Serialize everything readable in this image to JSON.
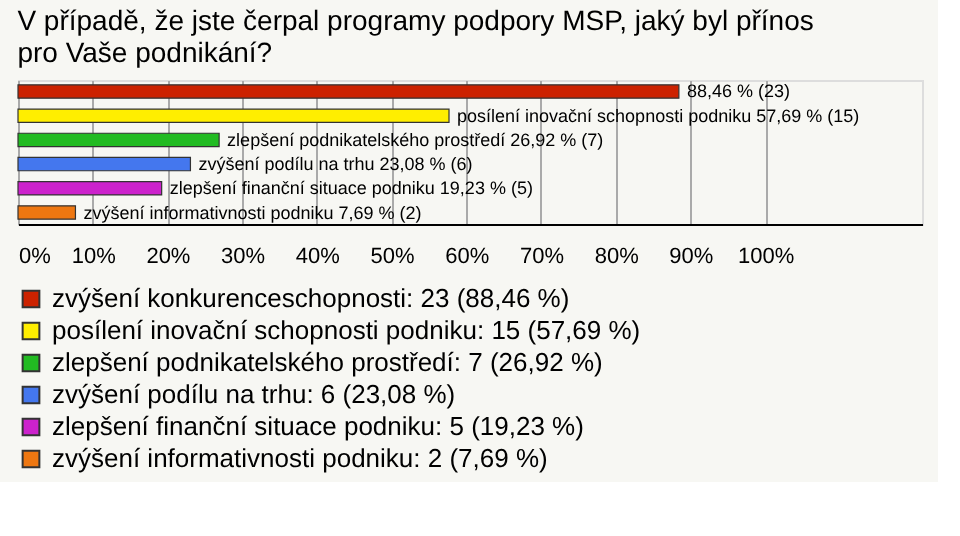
{
  "chart_data": {
    "type": "bar",
    "orientation": "horizontal",
    "stacked": true,
    "title": "V případě, že jste čerpal programy podpory MSP, jaký byl přínos pro Vaše podnikání?",
    "categories": [
      null,
      null,
      null,
      null,
      null,
      null
    ],
    "series": [
      {
        "name": "zvýšení konkurenceschopnosti: 23 (88,46 %)",
        "color": "#cc2200",
        "values": [
          88.46,
          null,
          null,
          null,
          null,
          null
        ],
        "value_labels": [
          "88,46 % (23)",
          null,
          null,
          null,
          null,
          null
        ]
      },
      {
        "name": "posílení inovační schopnosti podniku: 15 (57,69 %)",
        "color": "#ffee00",
        "values": [
          null,
          57.69,
          null,
          null,
          null,
          null
        ],
        "value_labels": [
          null,
          "posílení inovační schopnosti podniku 57,69 % (15)",
          null,
          null,
          null,
          null
        ]
      },
      {
        "name": "zlepšení podnikatelského prostředí: 7 (26,92 %)",
        "color": "#22bb22",
        "values": [
          null,
          null,
          26.92,
          null,
          null,
          null
        ],
        "value_labels": [
          null,
          null,
          "zlepšení podnikatelského prostředí 26,92 % (7)",
          null,
          null,
          null
        ]
      },
      {
        "name": "zvýšení podílu na trhu: 6 (23,08 %)",
        "color": "#4477ee",
        "values": [
          null,
          null,
          null,
          23.08,
          null,
          null
        ],
        "value_labels": [
          null,
          null,
          null,
          "zvýšení podílu na trhu 23,08 % (6)",
          null,
          null
        ]
      },
      {
        "name": "zlepšení finanční situace podniku: 5 (19,23 %)",
        "color": "#cc22cc",
        "values": [
          null,
          null,
          null,
          null,
          19.23,
          null
        ],
        "value_labels": [
          null,
          null,
          null,
          null,
          "zlepšení finanční situace podniku 19,23 % (5)",
          null
        ]
      },
      {
        "name": "zvýšení informativnosti podniku: 2 (7,69 %)",
        "color": "#ee7711",
        "values": [
          null,
          null,
          null,
          null,
          null,
          7.69
        ],
        "value_labels": [
          null,
          null,
          null,
          null,
          null,
          "zvýšení informativnosti podniku 7,69 % (2)"
        ]
      }
    ],
    "xlim": [
      0,
      121
    ],
    "xticks": [
      {
        "value": 0,
        "label": "0%"
      },
      {
        "value": 10,
        "label": "10%"
      },
      {
        "value": 20,
        "label": "20%"
      },
      {
        "value": 30,
        "label": "30%"
      },
      {
        "value": 40,
        "label": "40%"
      },
      {
        "value": 50,
        "label": "50%"
      },
      {
        "value": 60,
        "label": "60%"
      },
      {
        "value": 70,
        "label": "70%"
      },
      {
        "value": 80,
        "label": "80%"
      },
      {
        "value": 90,
        "label": "90%"
      },
      {
        "value": 100,
        "label": "100%"
      }
    ],
    "grid": "x",
    "legend": "bottom",
    "tick_labels": "x"
  }
}
